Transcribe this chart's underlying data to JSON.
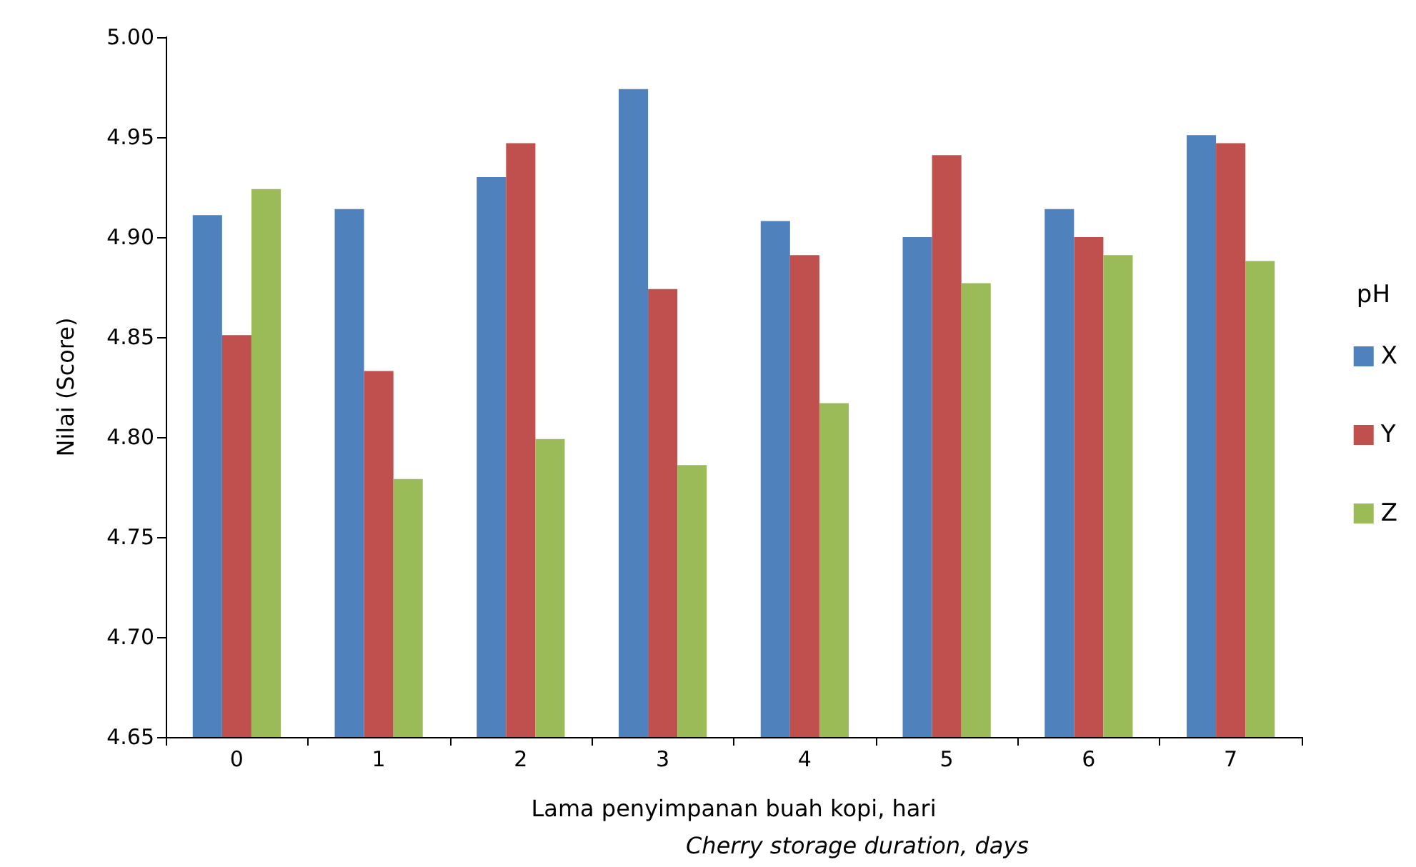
{
  "chart_data": {
    "type": "bar",
    "xlabel": "Lama penyimpanan buah kopi, hari",
    "ylabel": "Nilai (Score)",
    "legend_title": "pH",
    "annotations": [
      "Cherry storage duration, days"
    ],
    "categories": [
      "0",
      "1",
      "2",
      "3",
      "4",
      "5",
      "6",
      "7"
    ],
    "series": [
      {
        "name": "X",
        "color": "#4f81bd",
        "values": [
          4.911,
          4.914,
          4.93,
          4.974,
          4.908,
          4.9,
          4.914,
          4.951
        ]
      },
      {
        "name": "Y",
        "color": "#c0504d",
        "values": [
          4.851,
          4.833,
          4.947,
          4.874,
          4.891,
          4.941,
          4.9,
          4.947
        ]
      },
      {
        "name": "Z",
        "color": "#9bbb59",
        "values": [
          4.924,
          4.779,
          4.799,
          4.786,
          4.817,
          4.877,
          4.891,
          4.888
        ]
      }
    ],
    "ylim": [
      4.65,
      5.0
    ],
    "yticks": [
      {
        "value": 4.65,
        "label": "4.65"
      },
      {
        "value": 4.7,
        "label": "4.70"
      },
      {
        "value": 4.75,
        "label": "4.75"
      },
      {
        "value": 4.8,
        "label": "4.80"
      },
      {
        "value": 4.85,
        "label": "4.85"
      },
      {
        "value": 4.9,
        "label": "4.90"
      },
      {
        "value": 4.95,
        "label": "4.95"
      },
      {
        "value": 5.0,
        "label": "5.00"
      }
    ],
    "grid": false,
    "legend": "right"
  }
}
